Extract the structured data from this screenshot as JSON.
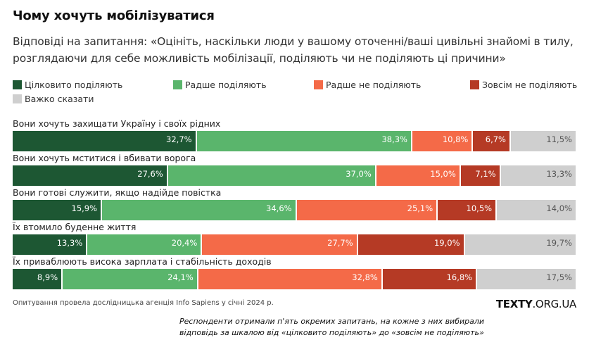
{
  "title": "Чому хочуть мобілізуватися",
  "subtitle": "Відповіді на запитання: «Оцініть, наскільки люди у вашому оточенні/ваші цивільні знайомі в тилу, розглядаючи для себе можливість мобілізації, поділяють чи не поділяють ці причини»",
  "footnote": "Опитування провела дослідницька агенція Info Sapiens у січні 2024 р.",
  "brand": {
    "bold": "TEXTY",
    "rest": ".ORG.UA"
  },
  "note": "Респонденти отримали п'ять окремих запитань, на кожне з них вибирали відповідь за шкалою від «цілковито поділяють» до «зовсім не поділяють»",
  "chart_data": {
    "type": "bar",
    "orientation": "horizontal",
    "stacked": true,
    "title": "Чому хочуть мобілізуватися",
    "xlabel": "",
    "ylabel": "",
    "xlim": [
      0,
      100
    ],
    "value_format": "percent, comma decimal",
    "legend_position": "top",
    "categories": [
      "Вони хочуть захищати Україну і своїх рідних",
      "Вони хочуть мститися і вбивати ворога",
      "Вони готові служити, якщо надійде повістка",
      "Їх втомило буденне життя",
      "Їх приваблюють висока зарплата і стабільність доходів"
    ],
    "series": [
      {
        "name": "Цілковито поділяють",
        "color": "#1d5733",
        "values": [
          32.7,
          27.6,
          15.9,
          13.3,
          8.9
        ]
      },
      {
        "name": "Радше поділяють",
        "color": "#5ab56c",
        "values": [
          38.3,
          37.0,
          34.6,
          20.4,
          24.1
        ]
      },
      {
        "name": "Радше не поділяють",
        "color": "#f46a48",
        "values": [
          10.8,
          15.0,
          25.1,
          27.7,
          32.8
        ]
      },
      {
        "name": "Зовсім не поділяють",
        "color": "#b53a25",
        "values": [
          6.7,
          7.1,
          10.5,
          19.0,
          16.8
        ]
      },
      {
        "name": "Важко сказати",
        "color": "#cfcfcf",
        "values": [
          11.5,
          13.3,
          14.0,
          19.7,
          17.5
        ]
      }
    ]
  }
}
